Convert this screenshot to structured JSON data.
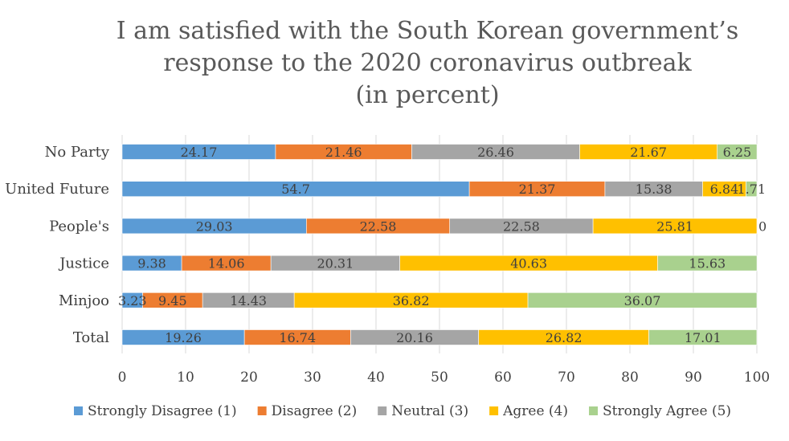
{
  "chart_data": {
    "type": "bar",
    "orientation": "horizontal",
    "stacked": true,
    "title": "I am satisfied with the South Korean government’s response to the 2020 coronavirus outbreak (in percent)",
    "title_lines": [
      "I am satisfied with the South Korean government’s",
      "response to the 2020 coronavirus outbreak",
      "(in percent)"
    ],
    "categories": [
      "No Party",
      "United Future",
      "People's",
      "Justice",
      "Minjoo",
      "Total"
    ],
    "series": [
      {
        "name": "Strongly Disagree (1)",
        "color": "#5b9bd5",
        "values": [
          24.17,
          54.7,
          29.03,
          9.38,
          3.23,
          19.26
        ],
        "labels": [
          "24.17",
          "54.7",
          "29.03",
          "9.38",
          "3.23",
          "19.26"
        ]
      },
      {
        "name": "Disagree (2)",
        "color": "#ed7d31",
        "values": [
          21.46,
          21.37,
          22.58,
          14.06,
          9.45,
          16.74
        ],
        "labels": [
          "21.46",
          "21.37",
          "22.58",
          "14.06",
          "9.45",
          "16.74"
        ]
      },
      {
        "name": "Neutral (3)",
        "color": "#a5a5a5",
        "values": [
          26.46,
          15.38,
          22.58,
          20.31,
          14.43,
          20.16
        ],
        "labels": [
          "26.46",
          "15.38",
          "22.58",
          "20.31",
          "14.43",
          "20.16"
        ]
      },
      {
        "name": "Agree (4)",
        "color": "#ffc000",
        "values": [
          21.67,
          6.84,
          25.81,
          40.63,
          36.82,
          26.82
        ],
        "labels": [
          "21.67",
          "6.84",
          "25.81",
          "40.63",
          "36.82",
          "26.82"
        ]
      },
      {
        "name": "Strongly Agree (5)",
        "color": "#a9d18e",
        "values": [
          6.25,
          1.71,
          0,
          15.63,
          36.07,
          17.01
        ],
        "labels": [
          "6.25",
          "1.71",
          "0",
          "15.63",
          "36.07",
          "17.01"
        ]
      }
    ],
    "xlim": [
      0,
      100
    ],
    "xticks": [
      "0",
      "10",
      "20",
      "30",
      "40",
      "50",
      "60",
      "70",
      "80",
      "90",
      "100"
    ],
    "xlabel": "",
    "ylabel": "",
    "grid": true,
    "legend_position": "bottom"
  }
}
